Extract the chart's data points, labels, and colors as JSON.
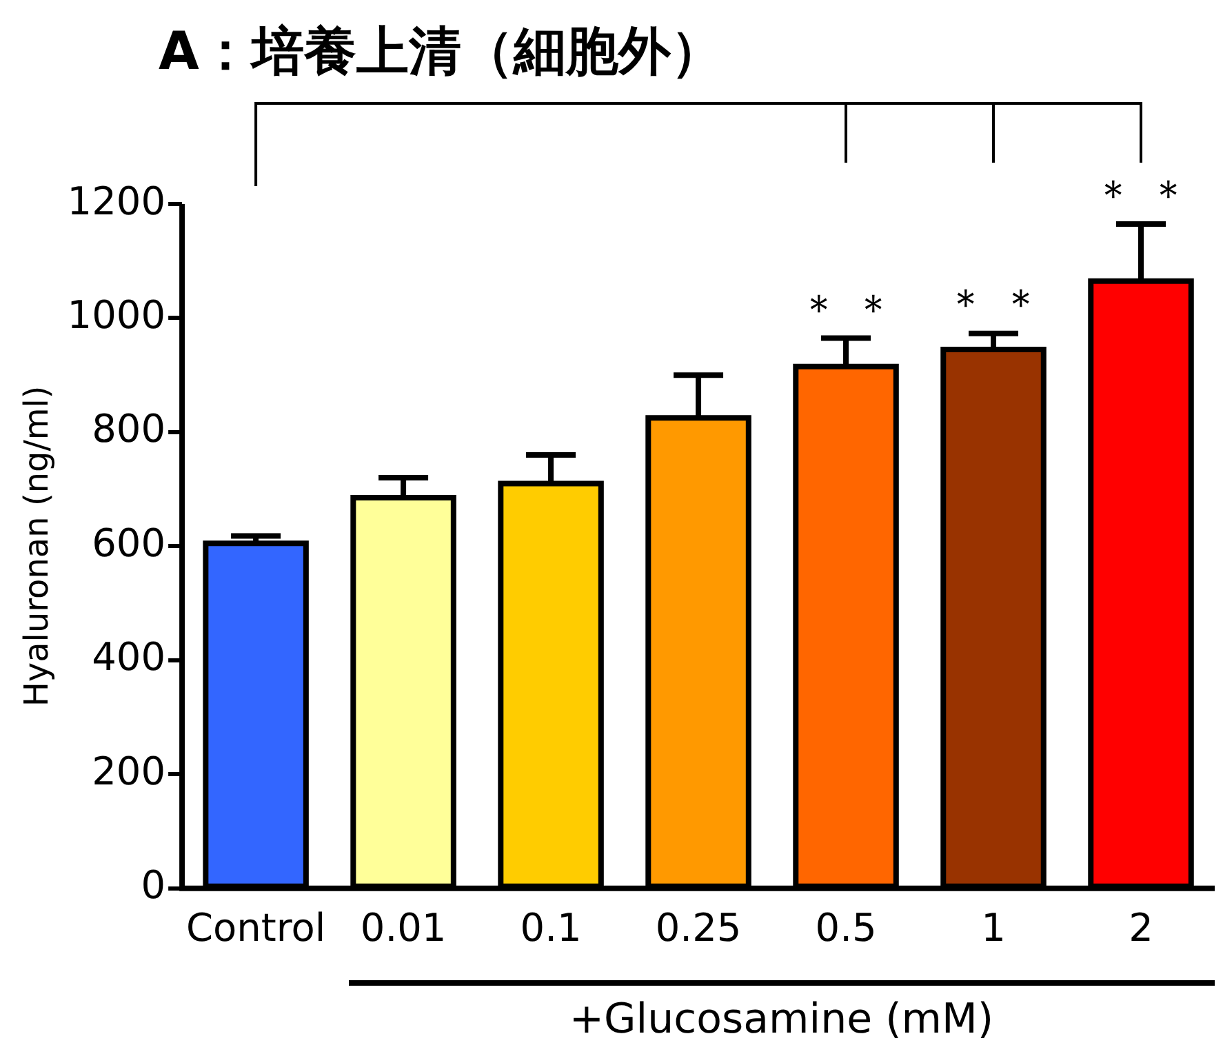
{
  "chart_data": {
    "type": "bar",
    "title": "A：培養上清（細胞外）",
    "ylabel": "Hyaluronan (ng/ml)",
    "xlabel": "+Glucosamine (mM)",
    "categories": [
      "Control",
      "0.01",
      "0.1",
      "0.25",
      "0.5",
      "1",
      "2"
    ],
    "values": [
      605,
      685,
      710,
      825,
      915,
      945,
      1065
    ],
    "colors": [
      "#3366ff",
      "#ffff99",
      "#ffcc00",
      "#ff9900",
      "#ff6600",
      "#993300",
      "#ff0000"
    ],
    "errors": [
      13,
      35,
      50,
      75,
      50,
      28,
      100
    ],
    "ylim": [
      0,
      1200
    ],
    "yticks": [
      0,
      200,
      400,
      600,
      800,
      1000,
      1200
    ],
    "grid": false,
    "legend": false,
    "annotations": [
      {
        "text": "＊ ＊",
        "x": "0.5",
        "y": 964
      },
      {
        "text": "＊ ＊",
        "x": "1",
        "y": 973
      },
      {
        "text": "＊ ＊",
        "x": "2",
        "y": 1164
      }
    ]
  }
}
